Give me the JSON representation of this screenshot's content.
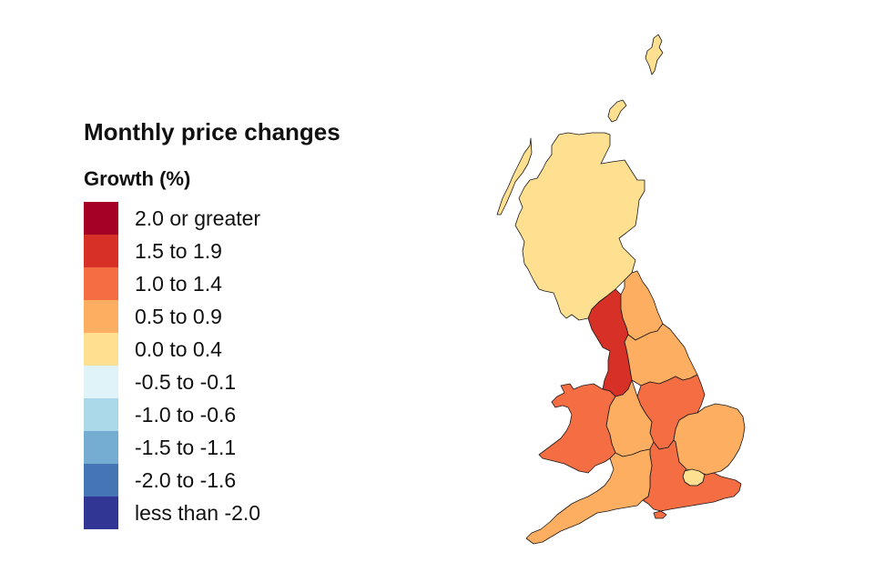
{
  "legend": {
    "title": "Monthly price changes",
    "subtitle": "Growth (%)",
    "items": [
      {
        "label": "2.0 or greater",
        "color": "#A50026"
      },
      {
        "label": "1.5 to 1.9",
        "color": "#D73027"
      },
      {
        "label": "1.0 to 1.4",
        "color": "#F46D43"
      },
      {
        "label": "0.5 to 0.9",
        "color": "#FDAE61"
      },
      {
        "label": "0.0 to 0.4",
        "color": "#FEE090"
      },
      {
        "label": "-0.5 to -0.1",
        "color": "#E0F3F8"
      },
      {
        "label": "-1.0 to -0.6",
        "color": "#ABD9E9"
      },
      {
        "label": "-1.5 to -1.1",
        "color": "#74ADD1"
      },
      {
        "label": "-2.0 to -1.6",
        "color": "#4575B4"
      },
      {
        "label": "less than -2.0",
        "color": "#313695"
      }
    ]
  },
  "map": {
    "regions": [
      {
        "name": "Scotland",
        "band": "0.0 to 0.4",
        "color": "#FEE090"
      },
      {
        "name": "North East",
        "band": "0.5 to 0.9",
        "color": "#FDAE61"
      },
      {
        "name": "North West",
        "band": "1.5 to 1.9",
        "color": "#D73027"
      },
      {
        "name": "Yorkshire and The Humber",
        "band": "0.5 to 0.9",
        "color": "#FDAE61"
      },
      {
        "name": "East Midlands",
        "band": "1.0 to 1.4",
        "color": "#F46D43"
      },
      {
        "name": "West Midlands",
        "band": "0.5 to 0.9",
        "color": "#FDAE61"
      },
      {
        "name": "Wales",
        "band": "1.0 to 1.4",
        "color": "#F46D43"
      },
      {
        "name": "East of England",
        "band": "0.5 to 0.9",
        "color": "#FDAE61"
      },
      {
        "name": "London",
        "band": "0.0 to 0.4",
        "color": "#FEE090"
      },
      {
        "name": "South East",
        "band": "1.0 to 1.4",
        "color": "#F46D43"
      },
      {
        "name": "South West",
        "band": "0.5 to 0.9",
        "color": "#FDAE61"
      }
    ]
  }
}
